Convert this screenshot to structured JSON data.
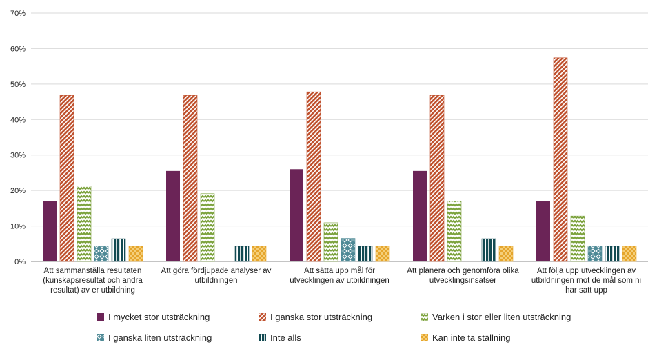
{
  "chart_data": {
    "type": "bar",
    "ylim": [
      0,
      70
    ],
    "yticks": [
      "0%",
      "10%",
      "20%",
      "30%",
      "40%",
      "50%",
      "60%",
      "70%"
    ],
    "grid": true,
    "legend_position": "bottom",
    "categories": [
      [
        "Att sammanställa resultaten",
        "(kunskapsresultat och andra",
        "resultat) av er utbildning"
      ],
      [
        "Att göra fördjupade analyser av",
        "utbildningen"
      ],
      [
        "Att sätta upp mål för",
        "utvecklingen av utbildningen"
      ],
      [
        "Att planera och genomföra olika",
        "utvecklingsinsatser"
      ],
      [
        "Att följa upp utvecklingen av",
        "utbildningen mot de mål som ni",
        "har satt upp"
      ]
    ],
    "series": [
      {
        "name": "I mycket stor utsträckning",
        "color": "#6b2457",
        "pattern": "solid",
        "values": [
          17.0,
          25.5,
          26.0,
          25.5,
          17.0
        ]
      },
      {
        "name": "I ganska stor utsträckning",
        "color": "#c0522f",
        "pattern": "diagonal",
        "values": [
          46.8,
          46.8,
          47.8,
          46.8,
          57.4
        ]
      },
      {
        "name": "Varken i stor eller liten utsträckning",
        "color": "#7aa13a",
        "pattern": "zigzag",
        "values": [
          21.3,
          19.1,
          10.9,
          17.0,
          12.8
        ]
      },
      {
        "name": "I ganska liten utsträckning",
        "color": "#4f8a96",
        "pattern": "diamond",
        "values": [
          4.3,
          0,
          6.5,
          0,
          4.3
        ]
      },
      {
        "name": "Inte alls",
        "color": "#124a52",
        "pattern": "vertical",
        "values": [
          6.4,
          4.3,
          4.3,
          6.4,
          4.3
        ]
      },
      {
        "name": "Kan inte ta ställning",
        "color": "#e5a52c",
        "pattern": "checker",
        "values": [
          4.3,
          4.3,
          4.3,
          4.3,
          4.3
        ]
      }
    ]
  }
}
